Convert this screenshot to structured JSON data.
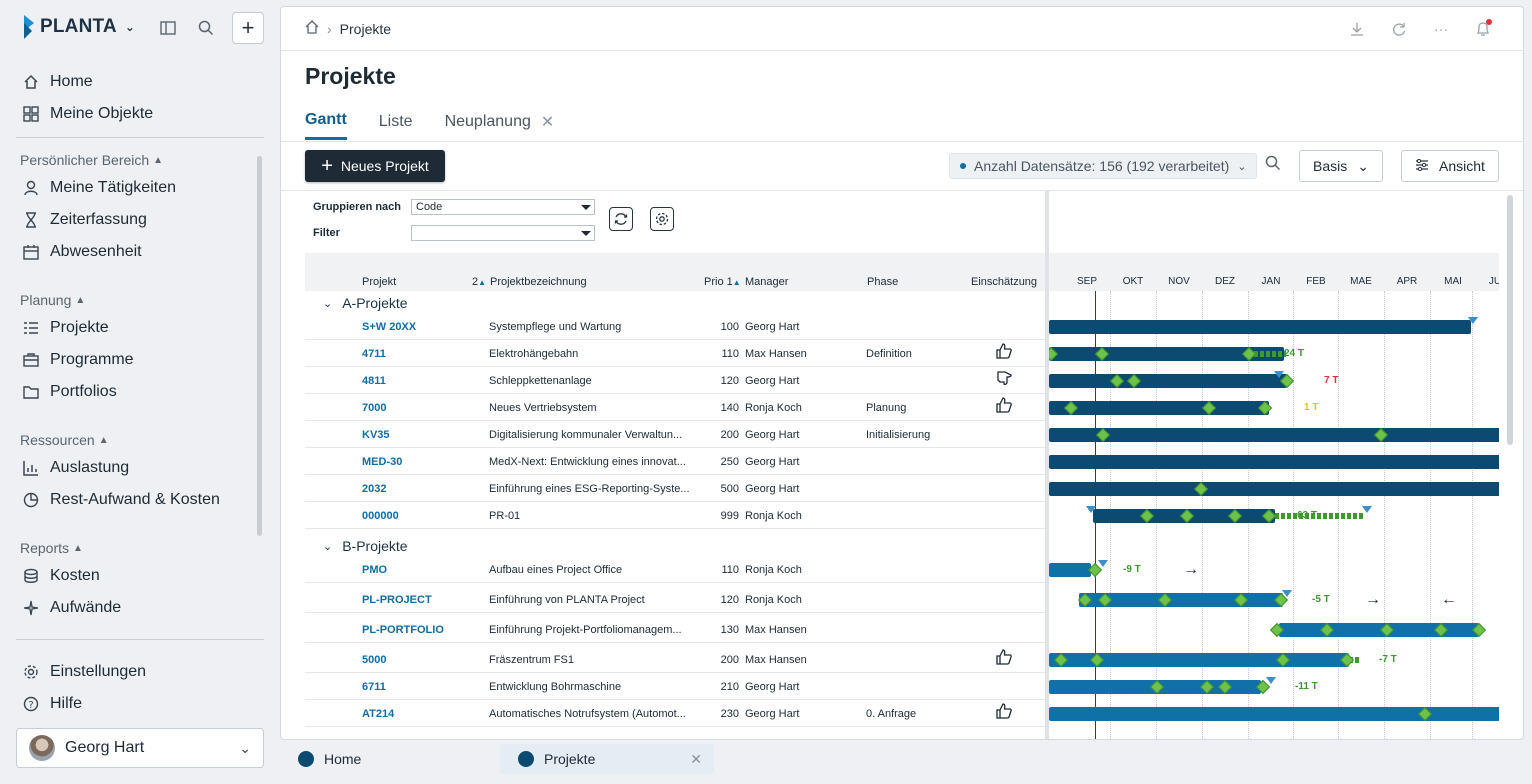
{
  "app": {
    "logo": "PLANTA"
  },
  "sidebar": {
    "top": [
      {
        "label": "Home",
        "icon": "home-icon"
      },
      {
        "label": "Meine Objekte",
        "icon": "grid-icon"
      }
    ],
    "sections": [
      {
        "title": "Persönlicher Bereich",
        "items": [
          {
            "label": "Meine Tätigkeiten",
            "icon": "person-icon"
          },
          {
            "label": "Zeiterfassung",
            "icon": "hourglass-icon"
          },
          {
            "label": "Abwesenheit",
            "icon": "calendar-icon"
          }
        ]
      },
      {
        "title": "Planung",
        "items": [
          {
            "label": "Projekte",
            "icon": "list-icon"
          },
          {
            "label": "Programme",
            "icon": "briefcase-icon"
          },
          {
            "label": "Portfolios",
            "icon": "folder-icon"
          }
        ]
      },
      {
        "title": "Ressourcen",
        "items": [
          {
            "label": "Auslastung",
            "icon": "bar-chart-icon"
          },
          {
            "label": "Rest-Aufwand & Kosten",
            "icon": "pie-chart-icon"
          }
        ]
      },
      {
        "title": "Reports",
        "items": [
          {
            "label": "Kosten",
            "icon": "coins-icon"
          },
          {
            "label": "Aufwände",
            "icon": "sparkle-icon"
          }
        ]
      }
    ],
    "bottom": [
      {
        "label": "Einstellungen",
        "icon": "gear-icon"
      },
      {
        "label": "Hilfe",
        "icon": "help-icon"
      }
    ],
    "user": "Georg Hart"
  },
  "breadcrumb": {
    "current": "Projekte"
  },
  "page": {
    "title": "Projekte"
  },
  "tabs": [
    {
      "label": "Gantt",
      "active": true
    },
    {
      "label": "Liste"
    },
    {
      "label": "Neuplanung",
      "closable": true
    }
  ],
  "toolbar": {
    "new_project": "Neues Projekt",
    "count": "Anzahl Datensätze: 156 (192 verarbeitet)",
    "basis": "Basis",
    "ansicht": "Ansicht"
  },
  "form": {
    "group_label": "Gruppieren nach",
    "group_value": "Code",
    "filter_label": "Filter",
    "filter_value": ""
  },
  "columns": {
    "projekt": "Projekt",
    "sort2": "2",
    "bezeichnung": "Projektbezeichnung",
    "prio": "Prio 1",
    "manager": "Manager",
    "phase": "Phase",
    "einschaetzung": "Einschätzung"
  },
  "months": [
    "SEP",
    "OKT",
    "NOV",
    "DEZ",
    "JAN",
    "FEB",
    "MAE",
    "APR",
    "MAI",
    "JU"
  ],
  "groups": [
    {
      "name": "A-Projekte",
      "rows": [
        {
          "code": "S+W 20XX",
          "name": "Systempflege und Wartung",
          "prio": "100",
          "manager": "Georg Hart",
          "phase": "",
          "rating": ""
        },
        {
          "code": "4711",
          "name": "Elektrohängebahn",
          "prio": "110",
          "manager": "Max Hansen",
          "phase": "Definition",
          "rating": "up"
        },
        {
          "code": "4811",
          "name": "Schleppkettenanlage",
          "prio": "120",
          "manager": "Georg Hart",
          "phase": "",
          "rating": "side"
        },
        {
          "code": "7000",
          "name": "Neues Vertriebsystem",
          "prio": "140",
          "manager": "Ronja Koch",
          "phase": "Planung",
          "rating": "up"
        },
        {
          "code": "KV35",
          "name": "Digitalisierung kommunaler Verwaltun...",
          "prio": "200",
          "manager": "Georg Hart",
          "phase": "Initialisierung",
          "rating": ""
        },
        {
          "code": "MED-30",
          "name": "MedX-Next: Entwicklung eines innovat...",
          "prio": "250",
          "manager": "Georg Hart",
          "phase": "",
          "rating": ""
        },
        {
          "code": "2032",
          "name": "Einführung eines ESG-Reporting-Syste...",
          "prio": "500",
          "manager": "Georg Hart",
          "phase": "",
          "rating": ""
        },
        {
          "code": "000000",
          "name": "PR-01",
          "prio": "999",
          "manager": "Ronja Koch",
          "phase": "",
          "rating": ""
        }
      ]
    },
    {
      "name": "B-Projekte",
      "rows": [
        {
          "code": "PMO",
          "name": "Aufbau eines Project Office",
          "prio": "110",
          "manager": "Ronja Koch",
          "phase": "",
          "rating": ""
        },
        {
          "code": "PL-PROJECT",
          "name": "Einführung von PLANTA Project",
          "prio": "120",
          "manager": "Ronja Koch",
          "phase": "",
          "rating": ""
        },
        {
          "code": "PL-PORTFOLIO",
          "name": "Einführung Projekt-Portfoliomanagem...",
          "prio": "130",
          "manager": "Max Hansen",
          "phase": "",
          "rating": ""
        },
        {
          "code": "5000",
          "name": "Fräszentrum FS1",
          "prio": "200",
          "manager": "Max Hansen",
          "phase": "",
          "rating": "up"
        },
        {
          "code": "6711",
          "name": "Entwicklung Bohrmaschine",
          "prio": "210",
          "manager": "Georg Hart",
          "phase": "",
          "rating": ""
        },
        {
          "code": "AT214",
          "name": "Automatisches Notrufsystem (Automot...",
          "prio": "230",
          "manager": "Georg Hart",
          "phase": "0. Anfrage",
          "rating": "up"
        }
      ]
    }
  ],
  "gantt_labels": {
    "r2": "24 T",
    "r3": "7 T",
    "r4": "1 T",
    "r8": "63 T",
    "b1": "-9 T",
    "b2": "-5 T",
    "b4": "-7 T",
    "b5": "-11 T"
  },
  "colors": {
    "bar_dark": "#0d4a72",
    "bar_mid": "#1070a8",
    "milestone": "#6cc24a",
    "overdue": "#e0303a",
    "warn": "#e8c300",
    "ok": "#3e9a2e"
  },
  "bottom_tabs": [
    {
      "label": "Home"
    },
    {
      "label": "Projekte",
      "active": true
    }
  ]
}
